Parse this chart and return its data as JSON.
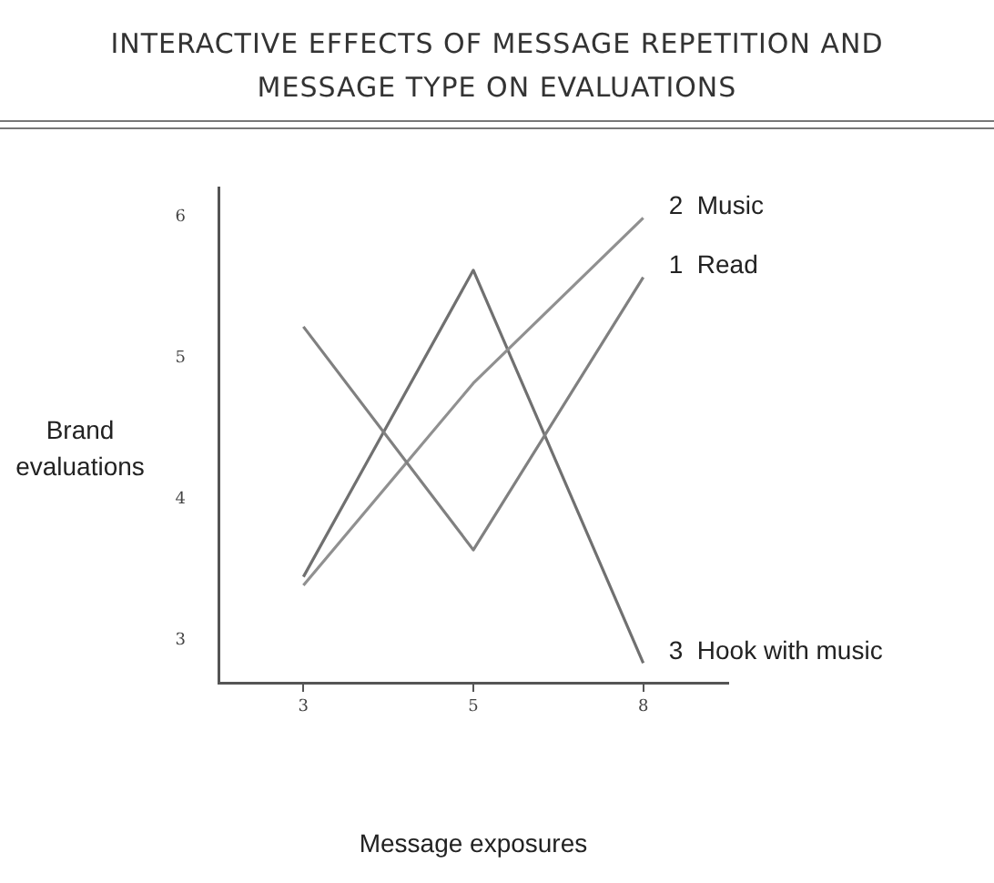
{
  "chart_data": {
    "type": "line",
    "title": "INTERACTIVE EFFECTS OF MESSAGE REPETITION AND MESSAGE TYPE ON EVALUATIONS",
    "xlabel": "Message exposures",
    "ylabel": "Brand evaluations",
    "categories": [
      "3",
      "5",
      "8"
    ],
    "series": [
      {
        "name": "1  Read",
        "color": "#808080",
        "values": [
          5.22,
          3.64,
          5.57
        ]
      },
      {
        "name": "2  Music",
        "color": "#909090",
        "values": [
          3.39,
          4.82,
          5.99
        ]
      },
      {
        "name": "3  Hook with music",
        "color": "#707070",
        "values": [
          3.45,
          5.62,
          2.84
        ]
      }
    ],
    "ylim": [
      2.7,
      6.2
    ],
    "yticks": [
      3,
      4,
      5,
      6
    ],
    "grid": false,
    "legend": false,
    "marker": "none",
    "line_style": "solid"
  }
}
